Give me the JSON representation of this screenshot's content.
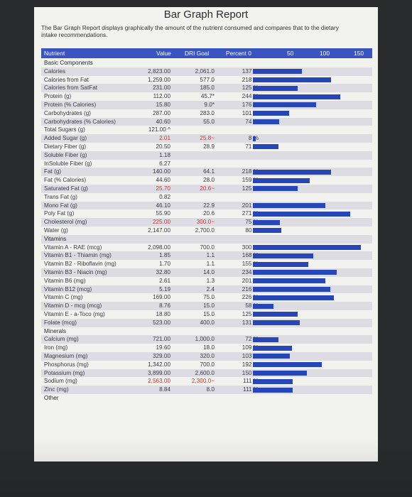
{
  "title": "Bar Graph Report",
  "description": "The Bar Graph Report displays graphically the amount of the nutrient consumed and compares that to the dietary intake recommendations.",
  "header": {
    "nutrient": "Nutrient",
    "value": "Value",
    "dri": "DRI Goal",
    "percent": "Percent 0",
    "tick50": "50",
    "tick100": "100",
    "tick150": "150"
  },
  "colors": {
    "bar": "#2747b6",
    "header": "#3a55bf",
    "warn": "#c43b35"
  },
  "rows": [
    {
      "type": "section",
      "name": "Basic Components"
    },
    {
      "name": "Calories",
      "value": "2,823.00",
      "dri": "2,061.0",
      "pct": "137 %",
      "p": 137
    },
    {
      "name": "Calories from Fat",
      "value": "1,259.00",
      "dri": "577.0",
      "pct": "218 %",
      "p": 218
    },
    {
      "name": "Calories from SatFat",
      "value": "231.00",
      "dri": "185.0",
      "pct": "125 %",
      "p": 125
    },
    {
      "name": "Protein (g)",
      "value": "112.00",
      "dri": "45.7*",
      "pct": "244 %",
      "p": 244
    },
    {
      "name": "Protein (% Calories)",
      "value": "15.80",
      "dri": "9.0*",
      "pct": "176 %",
      "p": 176
    },
    {
      "name": "Carbohydrates (g)",
      "value": "287.00",
      "dri": "283.0",
      "pct": "101 %",
      "p": 101
    },
    {
      "name": "Carbohydrates (% Calories)",
      "value": "40.60",
      "dri": "55.0",
      "pct": "74 %",
      "p": 74
    },
    {
      "name": "Total Sugars (g)",
      "value": "121.00 ^",
      "dri": "",
      "pct": "",
      "p": 0
    },
    {
      "name": "Added Sugar (g)",
      "value": "2.01",
      "dri": "25.8~",
      "pct": "8 %",
      "p": 8,
      "red": true
    },
    {
      "name": "Dietary Fiber (g)",
      "value": "20.50",
      "dri": "28.9",
      "pct": "71 %",
      "p": 71
    },
    {
      "name": "Soluble Fiber (g)",
      "value": "1.18",
      "dri": "",
      "pct": "",
      "p": 0
    },
    {
      "name": "InSoluble Fiber (g)",
      "value": "6.27",
      "dri": "",
      "pct": "",
      "p": 0
    },
    {
      "name": "Fat (g)",
      "value": "140.00",
      "dri": "64.1",
      "pct": "218 %",
      "p": 218
    },
    {
      "name": "Fat (% Calories)",
      "value": "44.60",
      "dri": "28.0",
      "pct": "159 %",
      "p": 159
    },
    {
      "name": "Saturated Fat (g)",
      "value": "25.70",
      "dri": "20.6~",
      "pct": "125 %",
      "p": 125,
      "red": true
    },
    {
      "name": "Trans Fat (g)",
      "value": "0.82",
      "dri": "",
      "pct": "",
      "p": 0
    },
    {
      "name": "Mono Fat (g)",
      "value": "46.10",
      "dri": "22.9",
      "pct": "201 %",
      "p": 201
    },
    {
      "name": "Poly Fat (g)",
      "value": "55.90",
      "dri": "20.6",
      "pct": "271 %",
      "p": 271
    },
    {
      "name": "Cholesterol (mg)",
      "value": "225.00",
      "dri": "300.0~",
      "pct": "75 %",
      "p": 75,
      "red": true
    },
    {
      "name": "Water (g)",
      "value": "2,147.00",
      "dri": "2,700.0",
      "pct": "80 %",
      "p": 80
    },
    {
      "type": "section",
      "name": "Vitamins"
    },
    {
      "name": "Vitamin A - RAE (mcg)",
      "value": "2,098.00",
      "dri": "700.0",
      "pct": "300 %",
      "p": 300
    },
    {
      "name": "Vitamin B1 - Thiamin (mg)",
      "value": "1.85",
      "dri": "1.1",
      "pct": "168 %",
      "p": 168
    },
    {
      "name": "Vitamin B2 - Riboflavin (mg)",
      "value": "1.70",
      "dri": "1.1",
      "pct": "155 %",
      "p": 155
    },
    {
      "name": "Vitamin B3 - Niacin (mg)",
      "value": "32.80",
      "dri": "14.0",
      "pct": "234 %",
      "p": 234
    },
    {
      "name": "Vitamin B6 (mg)",
      "value": "2.61",
      "dri": "1.3",
      "pct": "201 %",
      "p": 201
    },
    {
      "name": "Vitamin B12 (mcg)",
      "value": "5.19",
      "dri": "2.4",
      "pct": "216 %",
      "p": 216
    },
    {
      "name": "Vitamin C (mg)",
      "value": "169.00",
      "dri": "75.0",
      "pct": "226 %",
      "p": 226
    },
    {
      "name": "Vitamin D - mcg (mcg)",
      "value": "8.76",
      "dri": "15.0",
      "pct": "58 %",
      "p": 58
    },
    {
      "name": "Vitamin E - a-Toco (mg)",
      "value": "18.80",
      "dri": "15.0",
      "pct": "125 %",
      "p": 125
    },
    {
      "name": "Folate (mcg)",
      "value": "523.00",
      "dri": "400.0",
      "pct": "131 %",
      "p": 131
    },
    {
      "type": "section",
      "name": "Minerals"
    },
    {
      "name": "Calcium (mg)",
      "value": "721.00",
      "dri": "1,000.0",
      "pct": "72 %",
      "p": 72
    },
    {
      "name": "Iron (mg)",
      "value": "19.60",
      "dri": "18.0",
      "pct": "109 %",
      "p": 109
    },
    {
      "name": "Magnesium (mg)",
      "value": "329.00",
      "dri": "320.0",
      "pct": "103 %",
      "p": 103
    },
    {
      "name": "Phosphorus (mg)",
      "value": "1,342.00",
      "dri": "700.0",
      "pct": "192 %",
      "p": 192
    },
    {
      "name": "Potassium (mg)",
      "value": "3,899.00",
      "dri": "2,600.0",
      "pct": "150 %",
      "p": 150
    },
    {
      "name": "Sodium (mg)",
      "value": "2,563.00",
      "dri": "2,300.0~",
      "pct": "111 %",
      "p": 111,
      "red": true
    },
    {
      "name": "Zinc (mg)",
      "value": "8.84",
      "dri": "8.0",
      "pct": "111 %",
      "p": 111
    },
    {
      "type": "section",
      "name": "Other"
    }
  ]
}
